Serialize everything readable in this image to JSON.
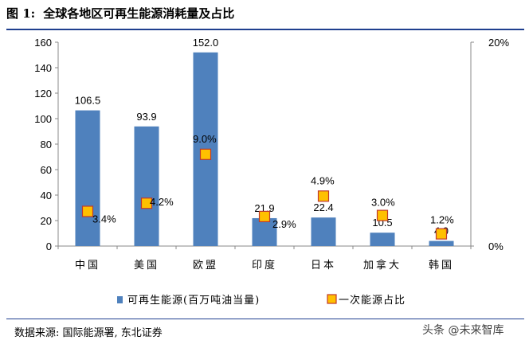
{
  "figure": {
    "label": "图 1:",
    "title": "全球各地区可再生能源消耗量及占比",
    "source": "数据来源: 国际能源署, 东北证券",
    "watermark": "头条 @未来智库"
  },
  "colors": {
    "bar": "#4f81bd",
    "marker_fill": "#ffc000",
    "marker_stroke": "#c0392b",
    "rule": "#1f3f8f"
  },
  "chart_data": {
    "type": "bar",
    "categories": [
      "中国",
      "美国",
      "欧盟",
      "印度",
      "日本",
      "加拿大",
      "韩国"
    ],
    "series": [
      {
        "name": "可再生能源(百万吨油当量)",
        "type": "bar",
        "axis": "left",
        "values": [
          106.5,
          93.9,
          152.0,
          21.9,
          22.4,
          10.5,
          4.0
        ],
        "labels": [
          "106.5",
          "93.9",
          "152.0",
          "21.9",
          "22.4",
          "10.5",
          "4.0"
        ]
      },
      {
        "name": "一次能源占比",
        "type": "marker",
        "axis": "right",
        "values": [
          3.4,
          4.2,
          9.0,
          2.9,
          4.9,
          3.0,
          1.2
        ],
        "labels": [
          "3.4%",
          "4.2%",
          "9.0%",
          "2.9%",
          "4.9%",
          "3.0%",
          "1.2%"
        ]
      }
    ],
    "y_left": {
      "ylim": [
        0,
        160
      ],
      "ticks": [
        "0",
        "20",
        "40",
        "60",
        "80",
        "100",
        "120",
        "140",
        "160"
      ]
    },
    "y_right": {
      "ylim": [
        0,
        20
      ],
      "ticks": [
        "0%",
        "20%"
      ],
      "tick_values": [
        0,
        20
      ]
    },
    "grid": false,
    "legend_position": "bottom"
  }
}
